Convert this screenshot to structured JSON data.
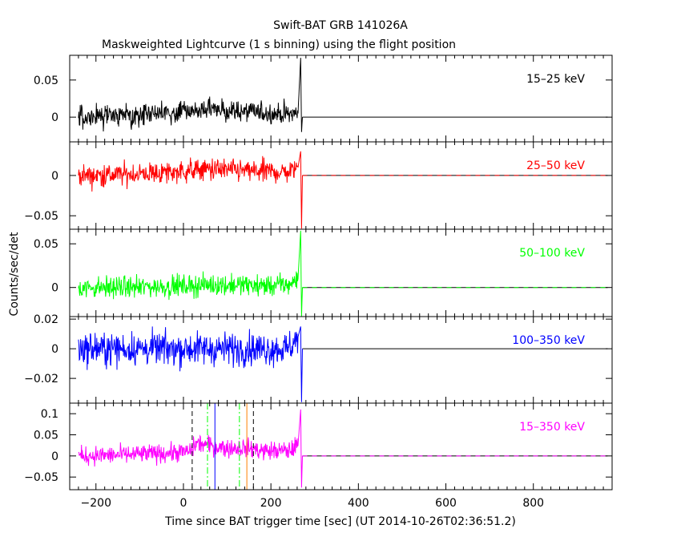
{
  "chart_data": {
    "type": "line",
    "title": "Swift-BAT GRB 141026A",
    "subtitle": "Maskweighted Lightcurve (1 s binning) using the flight position",
    "xlabel": "Time since BAT trigger time [sec] (UT 2014-10-26T02:36:51.2)",
    "ylabel": "Counts/sec/det",
    "xlim": [
      -260,
      980
    ],
    "x_ticks": [
      -200,
      0,
      200,
      400,
      600,
      800
    ],
    "x_tick_labels": [
      "−200",
      "0",
      "200",
      "400",
      "600",
      "800"
    ],
    "data_end_x": 272,
    "zero_line_end_x": 980,
    "panels": [
      {
        "band": "15–25 keV",
        "color": "#000000",
        "ylim": [
          -0.0333,
          0.0833
        ],
        "y_ticks": [
          0,
          0.05
        ],
        "y_tick_labels": [
          "0",
          "0.05"
        ],
        "noise_sigma": 0.007,
        "series": [
          {
            "x": -240,
            "y": 0.0
          },
          {
            "x": -150,
            "y": 0.002
          },
          {
            "x": -50,
            "y": 0.005
          },
          {
            "x": 20,
            "y": 0.008
          },
          {
            "x": 60,
            "y": 0.01
          },
          {
            "x": 120,
            "y": 0.008
          },
          {
            "x": 180,
            "y": 0.006
          },
          {
            "x": 240,
            "y": 0.004
          },
          {
            "x": 262,
            "y": 0.005
          },
          {
            "x": 268,
            "y": 0.08
          },
          {
            "x": 270,
            "y": -0.02
          },
          {
            "x": 272,
            "y": 0.0
          }
        ],
        "dashed_zero": false
      },
      {
        "band": "25–50 keV",
        "color": "#ff0000",
        "ylim": [
          -0.0667,
          0.0417
        ],
        "y_ticks": [
          -0.05,
          0
        ],
        "y_tick_labels": [
          "−0.05",
          "0"
        ],
        "noise_sigma": 0.007,
        "series": [
          {
            "x": -240,
            "y": 0.0
          },
          {
            "x": -150,
            "y": 0.001
          },
          {
            "x": -50,
            "y": 0.003
          },
          {
            "x": 20,
            "y": 0.006
          },
          {
            "x": 60,
            "y": 0.008
          },
          {
            "x": 120,
            "y": 0.006
          },
          {
            "x": 180,
            "y": 0.005
          },
          {
            "x": 240,
            "y": 0.004
          },
          {
            "x": 262,
            "y": 0.01
          },
          {
            "x": 268,
            "y": 0.03
          },
          {
            "x": 270,
            "y": -0.066
          },
          {
            "x": 272,
            "y": 0.0
          }
        ],
        "dashed_zero": true
      },
      {
        "band": "50–100 keV",
        "color": "#00ff00",
        "ylim": [
          -0.0333,
          0.0667
        ],
        "y_ticks": [
          0,
          0.05
        ],
        "y_tick_labels": [
          "0",
          "0.05"
        ],
        "noise_sigma": 0.006,
        "series": [
          {
            "x": -240,
            "y": 0.0
          },
          {
            "x": -150,
            "y": 0.0
          },
          {
            "x": -50,
            "y": 0.001
          },
          {
            "x": 20,
            "y": 0.002
          },
          {
            "x": 60,
            "y": 0.003
          },
          {
            "x": 120,
            "y": 0.003
          },
          {
            "x": 180,
            "y": 0.002
          },
          {
            "x": 240,
            "y": 0.003
          },
          {
            "x": 262,
            "y": 0.01
          },
          {
            "x": 268,
            "y": 0.065
          },
          {
            "x": 270,
            "y": -0.033
          },
          {
            "x": 272,
            "y": 0.0
          }
        ],
        "dashed_zero": true
      },
      {
        "band": "100–350 keV",
        "color": "#0000ff",
        "ylim": [
          -0.0367,
          0.0217
        ],
        "y_ticks": [
          -0.02,
          0,
          0.02
        ],
        "y_tick_labels": [
          "−0.02",
          "0",
          "0.02"
        ],
        "noise_sigma": 0.0055,
        "series": [
          {
            "x": -240,
            "y": 0.0
          },
          {
            "x": -150,
            "y": 0.0
          },
          {
            "x": -50,
            "y": 0.0
          },
          {
            "x": 20,
            "y": 0.0
          },
          {
            "x": 60,
            "y": 0.0
          },
          {
            "x": 120,
            "y": 0.0
          },
          {
            "x": 180,
            "y": 0.0
          },
          {
            "x": 240,
            "y": 0.0
          },
          {
            "x": 262,
            "y": 0.008
          },
          {
            "x": 268,
            "y": 0.015
          },
          {
            "x": 270,
            "y": -0.036
          },
          {
            "x": 272,
            "y": 0.0
          }
        ],
        "dashed_zero": false
      },
      {
        "band": "15–350 keV",
        "color": "#ff00ff",
        "ylim": [
          -0.08,
          0.125
        ],
        "y_ticks": [
          -0.05,
          0,
          0.05,
          0.1
        ],
        "y_tick_labels": [
          "−0.05",
          "0",
          "0.05",
          "0.1"
        ],
        "noise_sigma": 0.011,
        "series": [
          {
            "x": -240,
            "y": 0.0
          },
          {
            "x": -150,
            "y": 0.002
          },
          {
            "x": -50,
            "y": 0.006
          },
          {
            "x": 15,
            "y": 0.01
          },
          {
            "x": 30,
            "y": 0.03
          },
          {
            "x": 60,
            "y": 0.025
          },
          {
            "x": 100,
            "y": 0.018
          },
          {
            "x": 140,
            "y": 0.02
          },
          {
            "x": 180,
            "y": 0.012
          },
          {
            "x": 240,
            "y": 0.012
          },
          {
            "x": 262,
            "y": 0.025
          },
          {
            "x": 268,
            "y": 0.11
          },
          {
            "x": 270,
            "y": -0.075
          },
          {
            "x": 272,
            "y": 0.0
          }
        ],
        "dashed_zero": true,
        "markers": [
          {
            "x": 20,
            "style": "dashed",
            "color": "#000000"
          },
          {
            "x": 55,
            "style": "dashdot",
            "color": "#00ff00"
          },
          {
            "x": 72,
            "style": "solid",
            "color": "#0000ff"
          },
          {
            "x": 128,
            "style": "dashdot",
            "color": "#00ff00"
          },
          {
            "x": 145,
            "style": "solid",
            "color": "#ff8000"
          },
          {
            "x": 160,
            "style": "dashed",
            "color": "#000000"
          }
        ]
      }
    ]
  }
}
